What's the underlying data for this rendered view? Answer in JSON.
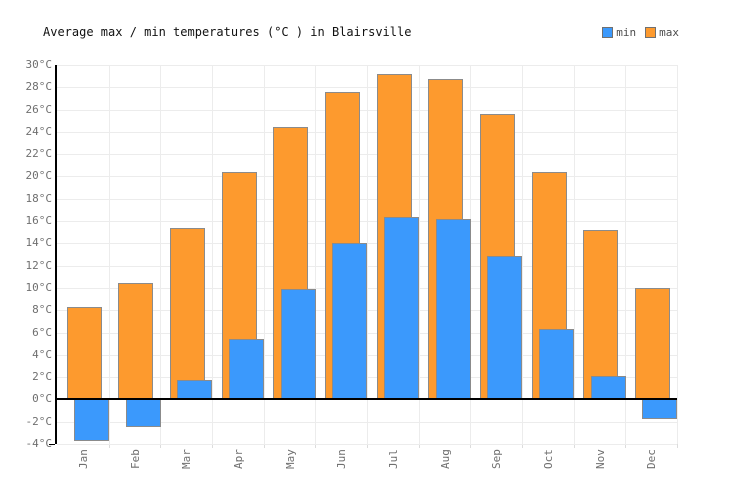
{
  "title": "Average max / min temperatures (°C ) in Blairsville",
  "legend": [
    {
      "label": "min",
      "color": "#3b99fc"
    },
    {
      "label": "max",
      "color": "#fd9a2e"
    }
  ],
  "colors": {
    "min_fill": "#3b99fc",
    "max_fill": "#fd9a2e",
    "bar_border": "#8b8b8b",
    "gridline": "#ececec",
    "axis": "#000000",
    "label_text": "#6f6f6f"
  },
  "chart_data": {
    "type": "bar",
    "title": "Average max / min temperatures (°C ) in Blairsville",
    "categories": [
      "Jan",
      "Feb",
      "Mar",
      "Apr",
      "May",
      "Jun",
      "Jul",
      "Aug",
      "Sep",
      "Oct",
      "Nov",
      "Dec"
    ],
    "series": [
      {
        "name": "min",
        "color": "#3b99fc",
        "values": [
          -3.8,
          -2.5,
          1.7,
          5.4,
          9.9,
          14.0,
          16.4,
          16.2,
          12.9,
          6.3,
          2.1,
          -1.8
        ]
      },
      {
        "name": "max",
        "color": "#fd9a2e",
        "values": [
          8.3,
          10.4,
          15.4,
          20.4,
          24.4,
          27.6,
          29.2,
          28.7,
          25.6,
          20.4,
          15.2,
          10.0
        ]
      }
    ],
    "xlabel": "",
    "ylabel": "",
    "ytick_suffix": "°C",
    "ylim": [
      -4,
      30
    ],
    "ytick_step": 2,
    "grid": true,
    "legend_position": "top-right"
  }
}
